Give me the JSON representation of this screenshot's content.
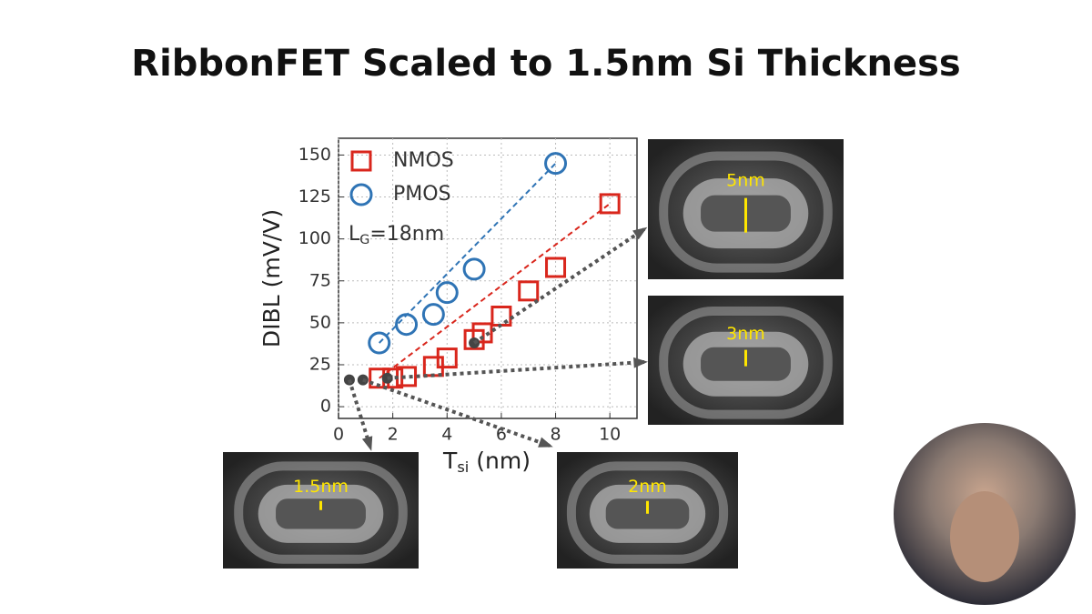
{
  "chart_data": {
    "type": "scatter",
    "title": "RibbonFET Scaled to 1.5nm Si Thickness",
    "x_label": {
      "main": "T",
      "sub": "si",
      "rest": " (nm)"
    },
    "y_label": "DIBL (mV/V)",
    "annotation": {
      "main": "L",
      "sub": "G",
      "rest": "=18nm"
    },
    "xlim": [
      0,
      11
    ],
    "ylim": [
      -7,
      160
    ],
    "xticks": [
      0,
      2,
      4,
      6,
      8,
      10
    ],
    "yticks": [
      0,
      25,
      50,
      75,
      100,
      125,
      150
    ],
    "grid": true,
    "series": [
      {
        "name": "NMOS",
        "color": "#d9261c",
        "marker": "square",
        "x": [
          1.5,
          2,
          2.5,
          3.5,
          4,
          5,
          5.3,
          6,
          7,
          8,
          10
        ],
        "values": [
          17,
          17,
          18,
          24,
          29,
          40,
          44,
          54,
          69,
          83,
          121
        ]
      },
      {
        "name": "PMOS",
        "color": "#2f74b5",
        "marker": "circle",
        "x": [
          1.5,
          2.5,
          3.5,
          4,
          5,
          8
        ],
        "values": [
          38,
          49,
          55,
          68,
          82,
          145
        ]
      },
      {
        "color": "#444444",
        "marker": "dot",
        "x": [
          0.4,
          0.9,
          1.8,
          5.0
        ],
        "values": [
          16,
          16,
          17,
          38
        ]
      }
    ]
  },
  "images": [
    {
      "label": "5nm"
    },
    {
      "label": "3nm"
    },
    {
      "label": "1.5nm"
    },
    {
      "label": "2nm"
    }
  ]
}
